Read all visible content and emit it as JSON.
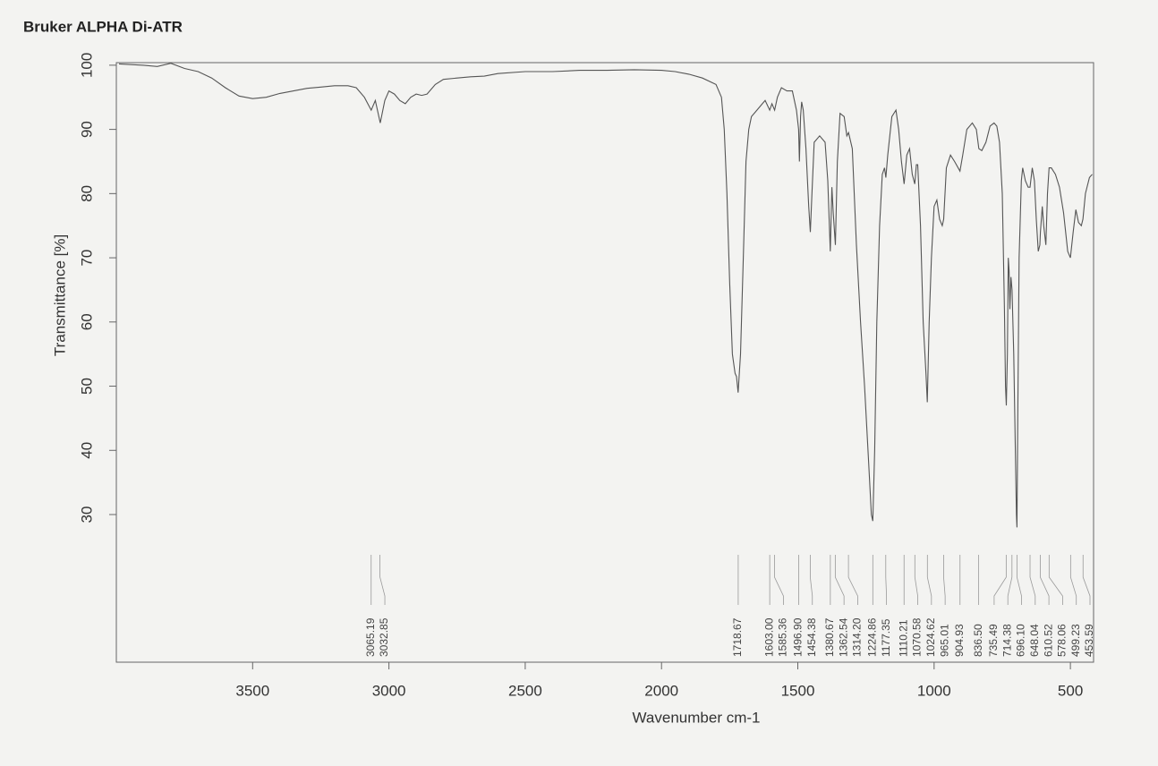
{
  "chart_data": {
    "type": "line",
    "title": "Bruker ALPHA Di-ATR",
    "x_label": "Wavenumber cm-1",
    "y_label": "Transmittance [%]",
    "color": "#555555",
    "xlim": [
      4000,
      415
    ],
    "ylim": [
      7,
      100.4
    ],
    "x_reversed": true,
    "xticks": [
      3500,
      3000,
      2500,
      2000,
      1500,
      1000,
      500
    ],
    "yticks": [
      30,
      40,
      50,
      60,
      70,
      80,
      90,
      100
    ],
    "x": [
      3990,
      3900,
      3850,
      3800,
      3750,
      3700,
      3650,
      3600,
      3550,
      3500,
      3450,
      3400,
      3350,
      3300,
      3250,
      3200,
      3150,
      3120,
      3090,
      3065,
      3050,
      3032,
      3015,
      3000,
      2980,
      2960,
      2940,
      2920,
      2900,
      2880,
      2860,
      2830,
      2800,
      2750,
      2700,
      2650,
      2600,
      2500,
      2400,
      2300,
      2200,
      2100,
      2000,
      1950,
      1900,
      1850,
      1800,
      1780,
      1770,
      1760,
      1750,
      1740,
      1730,
      1725,
      1719,
      1710,
      1700,
      1690,
      1680,
      1670,
      1650,
      1630,
      1620,
      1603,
      1595,
      1585,
      1575,
      1560,
      1540,
      1520,
      1505,
      1497,
      1494,
      1490,
      1486,
      1480,
      1470,
      1460,
      1454,
      1448,
      1440,
      1420,
      1400,
      1390,
      1381,
      1375,
      1370,
      1362,
      1355,
      1345,
      1330,
      1320,
      1314,
      1300,
      1285,
      1270,
      1255,
      1240,
      1230,
      1225,
      1218,
      1210,
      1200,
      1190,
      1182,
      1177,
      1170,
      1155,
      1140,
      1130,
      1120,
      1110,
      1100,
      1090,
      1080,
      1071,
      1065,
      1060,
      1050,
      1040,
      1030,
      1025,
      1018,
      1010,
      1000,
      990,
      980,
      970,
      965,
      955,
      940,
      925,
      905,
      895,
      880,
      860,
      845,
      836,
      825,
      810,
      795,
      780,
      770,
      760,
      750,
      742,
      738,
      735,
      731,
      728,
      725,
      722,
      718,
      714,
      708,
      702,
      698,
      696,
      693,
      688,
      680,
      675,
      665,
      655,
      648,
      640,
      632,
      625,
      618,
      612,
      610,
      603,
      598,
      590,
      584,
      578,
      570,
      555,
      540,
      525,
      510,
      500,
      490,
      480,
      470,
      460,
      454,
      445,
      430,
      420
    ],
    "values": [
      100.2,
      100,
      99.8,
      100.3,
      99.5,
      99,
      98,
      96.5,
      95.2,
      94.8,
      95,
      95.6,
      96,
      96.4,
      96.6,
      96.8,
      96.8,
      96.5,
      95,
      93,
      94.5,
      91,
      94.5,
      96,
      95.5,
      94.5,
      94,
      95,
      95.5,
      95.3,
      95.5,
      97,
      97.8,
      98,
      98.2,
      98.3,
      98.7,
      99,
      99,
      99.2,
      99.2,
      99.3,
      99.2,
      99,
      98.6,
      98,
      97,
      95,
      90,
      80,
      66,
      55,
      52,
      51.5,
      49,
      55,
      70,
      85,
      90,
      92,
      93,
      94,
      94.5,
      93,
      94,
      93,
      95,
      96.5,
      96,
      96,
      93,
      90,
      85,
      92,
      94.3,
      93,
      87,
      78,
      74,
      80,
      88,
      89,
      88,
      82,
      71,
      81,
      77,
      72,
      85,
      92.5,
      92,
      89,
      89.5,
      87,
      72,
      60,
      50,
      38,
      30,
      29,
      40,
      60,
      75,
      83,
      84,
      82.5,
      86,
      92,
      93,
      90,
      85,
      81.5,
      86,
      87,
      83,
      81.5,
      84.5,
      84.5,
      75,
      60,
      52,
      47.5,
      60,
      70,
      78,
      79,
      76,
      75,
      76,
      84,
      86,
      85,
      83.5,
      86,
      90,
      91,
      90,
      87,
      86.7,
      88,
      90.5,
      91,
      90.5,
      88,
      80,
      62,
      50,
      47,
      55,
      70,
      68,
      62,
      67,
      65,
      55,
      40,
      30,
      28,
      45,
      70,
      82,
      84,
      82,
      81,
      81,
      84,
      82,
      76,
      71,
      72,
      74,
      78,
      75,
      72,
      80,
      84,
      84,
      83,
      81,
      77,
      71,
      70,
      74,
      77.5,
      75.5,
      75,
      76,
      80,
      82.5,
      83
    ],
    "peaks": [
      {
        "value": 3065.19,
        "label": "3065.19"
      },
      {
        "value": 3032.85,
        "label": "3032.85"
      },
      {
        "value": 1718.67,
        "label": "1718.67"
      },
      {
        "value": 1603.0,
        "label": "1603.00"
      },
      {
        "value": 1585.36,
        "label": "1585.36"
      },
      {
        "value": 1496.9,
        "label": "1496.90"
      },
      {
        "value": 1454.38,
        "label": "1454.38"
      },
      {
        "value": 1380.67,
        "label": "1380.67"
      },
      {
        "value": 1362.54,
        "label": "1362.54"
      },
      {
        "value": 1314.2,
        "label": "1314.20"
      },
      {
        "value": 1224.86,
        "label": "1224.86"
      },
      {
        "value": 1177.35,
        "label": "1177.35"
      },
      {
        "value": 1110.21,
        "label": "1110.21"
      },
      {
        "value": 1070.58,
        "label": "1070.58"
      },
      {
        "value": 1024.62,
        "label": "1024.62"
      },
      {
        "value": 965.01,
        "label": "965.01"
      },
      {
        "value": 904.93,
        "label": "904.93"
      },
      {
        "value": 836.5,
        "label": "836.50"
      },
      {
        "value": 735.49,
        "label": "735.49"
      },
      {
        "value": 714.38,
        "label": "714.38"
      },
      {
        "value": 696.1,
        "label": "696.10"
      },
      {
        "value": 648.04,
        "label": "648.04"
      },
      {
        "value": 610.52,
        "label": "610.52"
      },
      {
        "value": 578.06,
        "label": "578.06"
      },
      {
        "value": 499.23,
        "label": "499.23"
      },
      {
        "value": 453.59,
        "label": "453.59"
      }
    ]
  }
}
